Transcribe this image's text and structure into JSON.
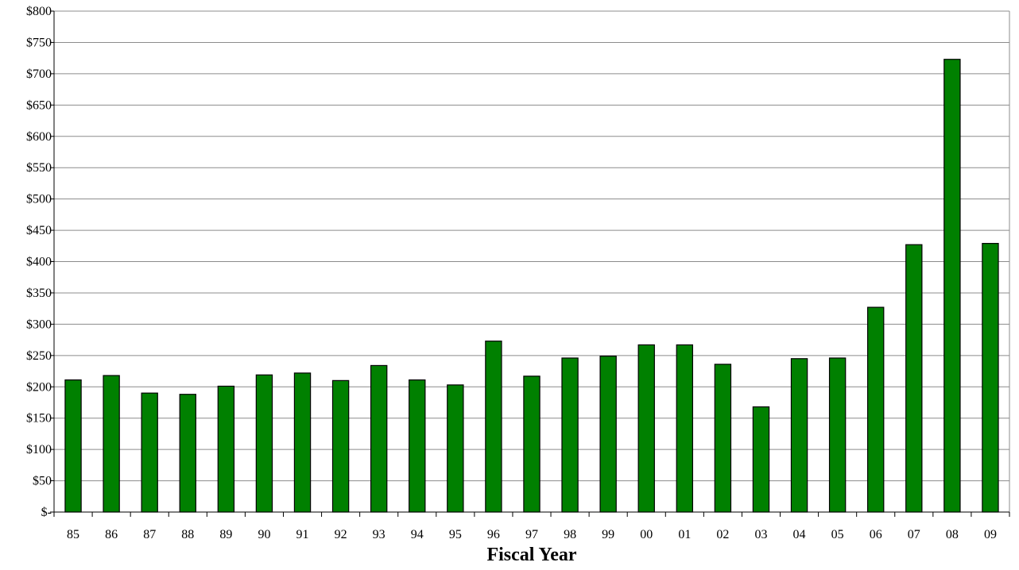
{
  "chart_data": {
    "type": "bar",
    "title": "",
    "xlabel": "Fiscal Year",
    "ylabel": "",
    "ylim": [
      0,
      800
    ],
    "y_tick_step": 50,
    "y_tick_labels": [
      "$-",
      "$50",
      "$100",
      "$150",
      "$200",
      "$250",
      "$300",
      "$350",
      "$400",
      "$450",
      "$500",
      "$550",
      "$600",
      "$650",
      "$700",
      "$750",
      "$800"
    ],
    "grid": true,
    "legend": "none",
    "categories": [
      "85",
      "86",
      "87",
      "88",
      "89",
      "90",
      "91",
      "92",
      "93",
      "94",
      "95",
      "96",
      "97",
      "98",
      "99",
      "00",
      "01",
      "02",
      "03",
      "04",
      "05",
      "06",
      "07",
      "08",
      "09"
    ],
    "series": [
      {
        "values": [
          211,
          218,
          190,
          188,
          201,
          219,
          222,
          210,
          234,
          211,
          203,
          273,
          217,
          246,
          249,
          267,
          267,
          236,
          168,
          245,
          246,
          327,
          427,
          723,
          429
        ],
        "color": "#008000"
      }
    ]
  }
}
